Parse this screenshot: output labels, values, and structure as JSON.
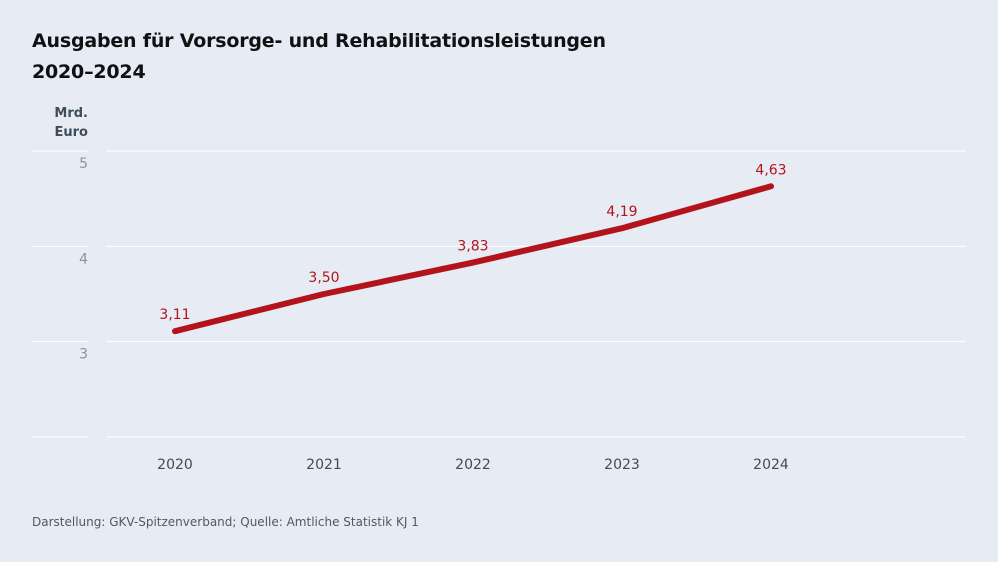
{
  "title_line1": "Ausgaben für Vorsorge- und Rehabilitationsleistungen",
  "title_line2": "2020–2024",
  "source": "Darstellung: GKV-Spitzenverband; Quelle: Amtliche Statistik KJ 1",
  "chart_data": {
    "type": "line",
    "ylabel_line1": "Mrd.",
    "ylabel_line2": "Euro",
    "categories": [
      "2020",
      "2021",
      "2022",
      "2023",
      "2024"
    ],
    "values": [
      3.11,
      3.5,
      3.83,
      4.19,
      4.63
    ],
    "data_labels": [
      "3,11",
      "3,50",
      "3,83",
      "4,19",
      "4,63"
    ],
    "ylim": [
      2,
      5
    ],
    "yticks": [
      2,
      3,
      4,
      5
    ],
    "ytick_labels": [
      "",
      "3",
      "4",
      "5"
    ],
    "grid": true,
    "line_color": "#b3141c"
  }
}
